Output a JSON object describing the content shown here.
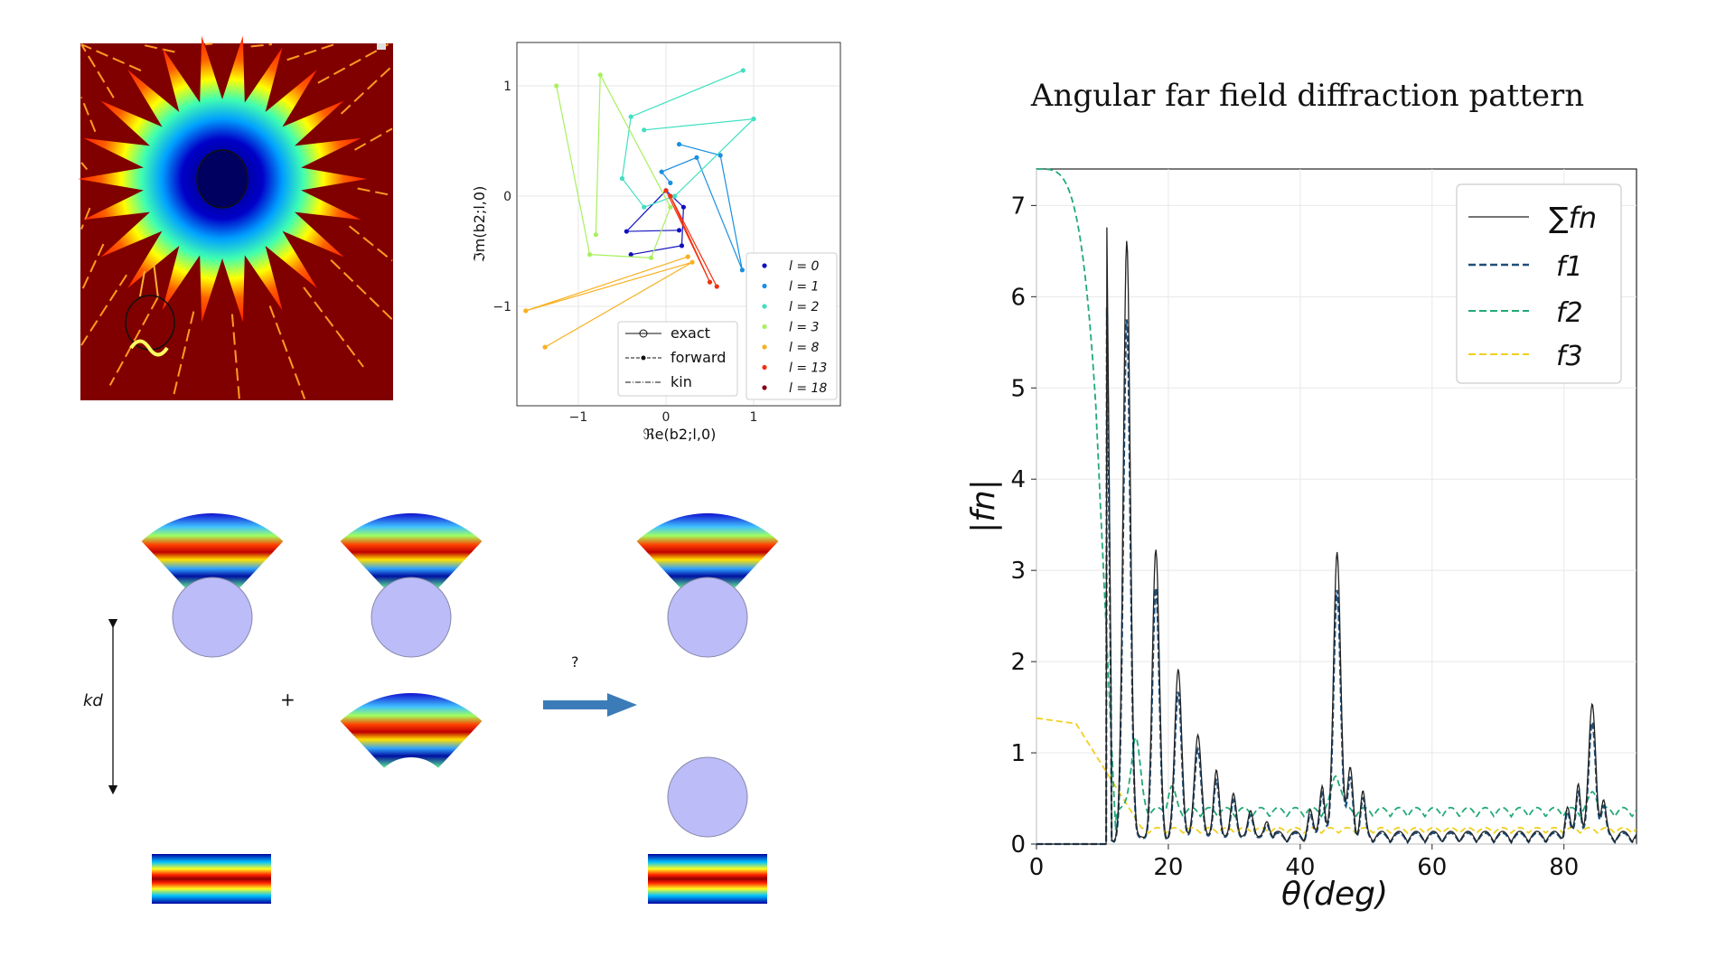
{
  "slide_title": "Angular far field diffraction pattern",
  "diagram": {
    "kd_label": "kd",
    "plus_label": "+",
    "question_label": "?"
  },
  "coef_plot": {
    "xlabel": "ℜe(b2;l,0)",
    "ylabel": "ℑm(b2;l,0)",
    "xticks": [
      "−1",
      "0",
      "1"
    ],
    "yticks": [
      "1",
      "0",
      "−1"
    ],
    "legend_lines": [
      "exact",
      "forward",
      "kin"
    ],
    "legend_l": [
      "l = 0",
      "l = 1",
      "l = 2",
      "l = 3",
      "l = 8",
      "l = 13",
      "l = 18"
    ],
    "colors": [
      "#1010c0",
      "#1b8fe0",
      "#40e0c0",
      "#a8f060",
      "#f8b020",
      "#f03010",
      "#800010"
    ]
  },
  "chart_data": {
    "type": "line",
    "title": "Angular far field diffraction pattern",
    "xlabel": "θ(deg)",
    "ylabel": "|fn|",
    "xlim": [
      0,
      91
    ],
    "ylim": [
      0,
      7.4
    ],
    "xticks": [
      "0",
      "20",
      "40",
      "60",
      "80"
    ],
    "yticks": [
      "0",
      "1",
      "2",
      "3",
      "4",
      "5",
      "6",
      "7"
    ],
    "legend": [
      "∑fn",
      "f1",
      "f2",
      "f3"
    ],
    "series_colors": [
      "#222222",
      "#1f4e79",
      "#22aa77",
      "#f0d020"
    ],
    "peaks": [
      {
        "x": 13.7,
        "y": 6.55
      },
      {
        "x": 18.1,
        "y": 3.15
      },
      {
        "x": 21.5,
        "y": 1.85
      },
      {
        "x": 24.5,
        "y": 1.15
      },
      {
        "x": 45.6,
        "y": 3.15
      },
      {
        "x": 84.3,
        "y": 1.42
      }
    ]
  }
}
